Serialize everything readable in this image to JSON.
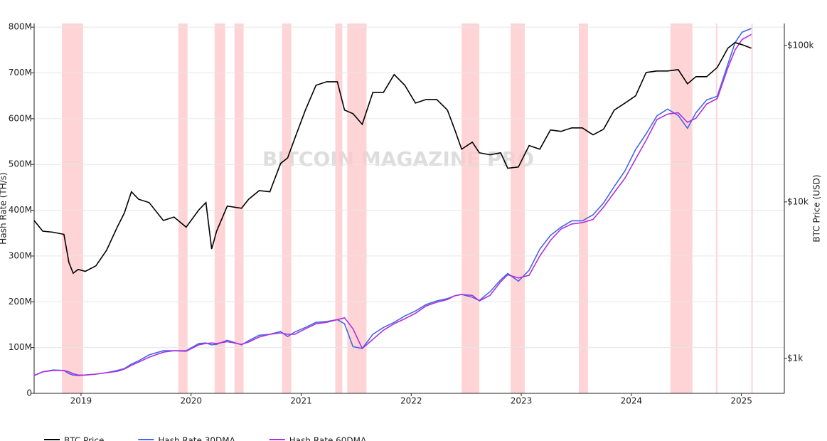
{
  "chart_data": {
    "type": "line",
    "watermark": "BITCOIN MAGAZINE PRO",
    "ylabel": "Hash Rate (TH/s)",
    "y2label": "BTC Price (USD)",
    "x": [
      2018.574,
      2018.652,
      2018.748,
      2018.845,
      2018.89,
      2018.929,
      2018.974,
      2019.039,
      2019.135,
      2019.232,
      2019.329,
      2019.394,
      2019.458,
      2019.523,
      2019.619,
      2019.748,
      2019.845,
      2019.955,
      2020.071,
      2020.135,
      2020.187,
      2020.232,
      2020.329,
      2020.458,
      2020.523,
      2020.619,
      2020.716,
      2020.813,
      2020.877,
      2020.942,
      2021.039,
      2021.135,
      2021.232,
      2021.329,
      2021.394,
      2021.471,
      2021.555,
      2021.652,
      2021.748,
      2021.845,
      2021.942,
      2022.039,
      2022.135,
      2022.232,
      2022.329,
      2022.394,
      2022.458,
      2022.555,
      2022.619,
      2022.716,
      2022.813,
      2022.877,
      2022.974,
      2023.071,
      2023.168,
      2023.265,
      2023.361,
      2023.458,
      2023.555,
      2023.652,
      2023.748,
      2023.845,
      2023.942,
      2024.039,
      2024.135,
      2024.232,
      2024.329,
      2024.426,
      2024.51,
      2024.587,
      2024.684,
      2024.781,
      2024.877,
      2024.942,
      2025.006,
      2025.09
    ],
    "series": [
      {
        "name": "BTC Price",
        "color": "#000000",
        "axis": "y2",
        "values": [
          7600,
          6500,
          6400,
          6200,
          4100,
          3500,
          3700,
          3600,
          3900,
          4900,
          6900,
          8500,
          11600,
          10400,
          9900,
          7600,
          8000,
          6900,
          8900,
          9900,
          5000,
          6500,
          9400,
          9100,
          10400,
          11800,
          11600,
          17600,
          19100,
          25400,
          38600,
          55600,
          58600,
          58600,
          38600,
          36600,
          31300,
          50100,
          50100,
          65100,
          55600,
          42800,
          45100,
          45100,
          38600,
          29100,
          21700,
          24100,
          20600,
          20000,
          20600,
          16400,
          16700,
          22900,
          21700,
          28800,
          28200,
          29700,
          29700,
          26800,
          29100,
          38600,
          42800,
          47600,
          67200,
          68600,
          68600,
          70000,
          56800,
          63100,
          63100,
          72300,
          95900,
          104200,
          101000,
          95900
        ]
      },
      {
        "name": "Hash Rate 30DMA",
        "color": "#4169e1",
        "values": [
          39000000.0,
          47000000.0,
          51000000.0,
          50000000.0,
          43000000.0,
          40000000.0,
          39000000.0,
          40000000.0,
          42000000.0,
          45000000.0,
          50000000.0,
          54000000.0,
          64000000.0,
          71000000.0,
          84000000.0,
          93000000.0,
          93000000.0,
          93000000.0,
          109000000.0,
          110000000.0,
          106000000.0,
          107000000.0,
          116000000.0,
          106000000.0,
          115000000.0,
          127000000.0,
          129000000.0,
          135000000.0,
          124000000.0,
          134000000.0,
          144000000.0,
          155000000.0,
          157000000.0,
          161000000.0,
          152000000.0,
          102000000.0,
          98000000.0,
          129000000.0,
          144000000.0,
          155000000.0,
          169000000.0,
          180000000.0,
          194000000.0,
          202000000.0,
          207000000.0,
          213000000.0,
          216000000.0,
          210000000.0,
          203000000.0,
          222000000.0,
          248000000.0,
          262000000.0,
          245000000.0,
          269000000.0,
          315000000.0,
          345000000.0,
          363000000.0,
          377000000.0,
          377000000.0,
          390000000.0,
          416000000.0,
          452000000.0,
          486000000.0,
          533000000.0,
          567000000.0,
          606000000.0,
          621000000.0,
          607000000.0,
          579000000.0,
          613000000.0,
          641000000.0,
          649000000.0,
          719000000.0,
          766000000.0,
          789000000.0,
          797000000.0
        ]
      },
      {
        "name": "Hash Rate 60DMA",
        "color": "#b02ee0",
        "values": [
          39000000.0,
          47000000.0,
          50000000.0,
          50000000.0,
          47000000.0,
          43000000.0,
          40000000.0,
          40000000.0,
          42000000.0,
          45000000.0,
          48000000.0,
          53000000.0,
          61000000.0,
          68000000.0,
          79000000.0,
          90000000.0,
          93000000.0,
          92000000.0,
          106000000.0,
          109000000.0,
          110000000.0,
          109000000.0,
          113000000.0,
          107000000.0,
          112000000.0,
          123000000.0,
          129000000.0,
          132000000.0,
          129000000.0,
          129000000.0,
          141000000.0,
          152000000.0,
          155000000.0,
          161000000.0,
          165000000.0,
          141000000.0,
          98000000.0,
          118000000.0,
          138000000.0,
          152000000.0,
          163000000.0,
          175000000.0,
          191000000.0,
          199000000.0,
          205000000.0,
          213000000.0,
          216000000.0,
          214000000.0,
          202000000.0,
          214000000.0,
          244000000.0,
          259000000.0,
          252000000.0,
          258000000.0,
          300000000.0,
          334000000.0,
          359000000.0,
          370000000.0,
          373000000.0,
          380000000.0,
          407000000.0,
          439000000.0,
          470000000.0,
          512000000.0,
          553000000.0,
          598000000.0,
          610000000.0,
          613000000.0,
          592000000.0,
          601000000.0,
          632000000.0,
          644000000.0,
          711000000.0,
          750000000.0,
          773000000.0,
          784000000.0
        ]
      }
    ],
    "band_color": "#ffc9cc",
    "capitulation_periods": [
      [
        2018.826,
        2019.019
      ],
      [
        2019.884,
        2019.968
      ],
      [
        2020.213,
        2020.31
      ],
      [
        2020.394,
        2020.477
      ],
      [
        2020.826,
        2020.91
      ],
      [
        2021.31,
        2021.374
      ],
      [
        2021.419,
        2021.594
      ],
      [
        2022.458,
        2022.619
      ],
      [
        2022.903,
        2023.032
      ],
      [
        2023.523,
        2023.606
      ],
      [
        2024.355,
        2024.555
      ],
      [
        2024.768,
        2024.781
      ],
      [
        2025.09,
        2025.103
      ]
    ],
    "xlim": [
      2018.574,
      2025.39
    ],
    "xticks": [
      2019,
      2020,
      2021,
      2022,
      2023,
      2024,
      2025
    ],
    "ylim": [
      0,
      808000000
    ],
    "yticks": [
      0,
      {
        "value": 100000000,
        "label": "100M"
      },
      {
        "value": 200000000,
        "label": "200M"
      },
      {
        "value": 300000000,
        "label": "300M"
      },
      {
        "value": 400000000,
        "label": "400M"
      },
      {
        "value": 500000000,
        "label": "500M"
      },
      {
        "value": 600000000,
        "label": "600M"
      },
      {
        "value": 700000000,
        "label": "700M"
      },
      {
        "value": 800000000,
        "label": "800M"
      }
    ],
    "y2lim": [
      598,
      138000
    ],
    "y2scale": "log",
    "y2ticks": [
      {
        "value": 1000,
        "label": "$1k"
      },
      {
        "value": 10000,
        "label": "$10k"
      },
      {
        "value": 100000,
        "label": "$100k"
      }
    ],
    "grid": true,
    "legend": "bottom"
  }
}
